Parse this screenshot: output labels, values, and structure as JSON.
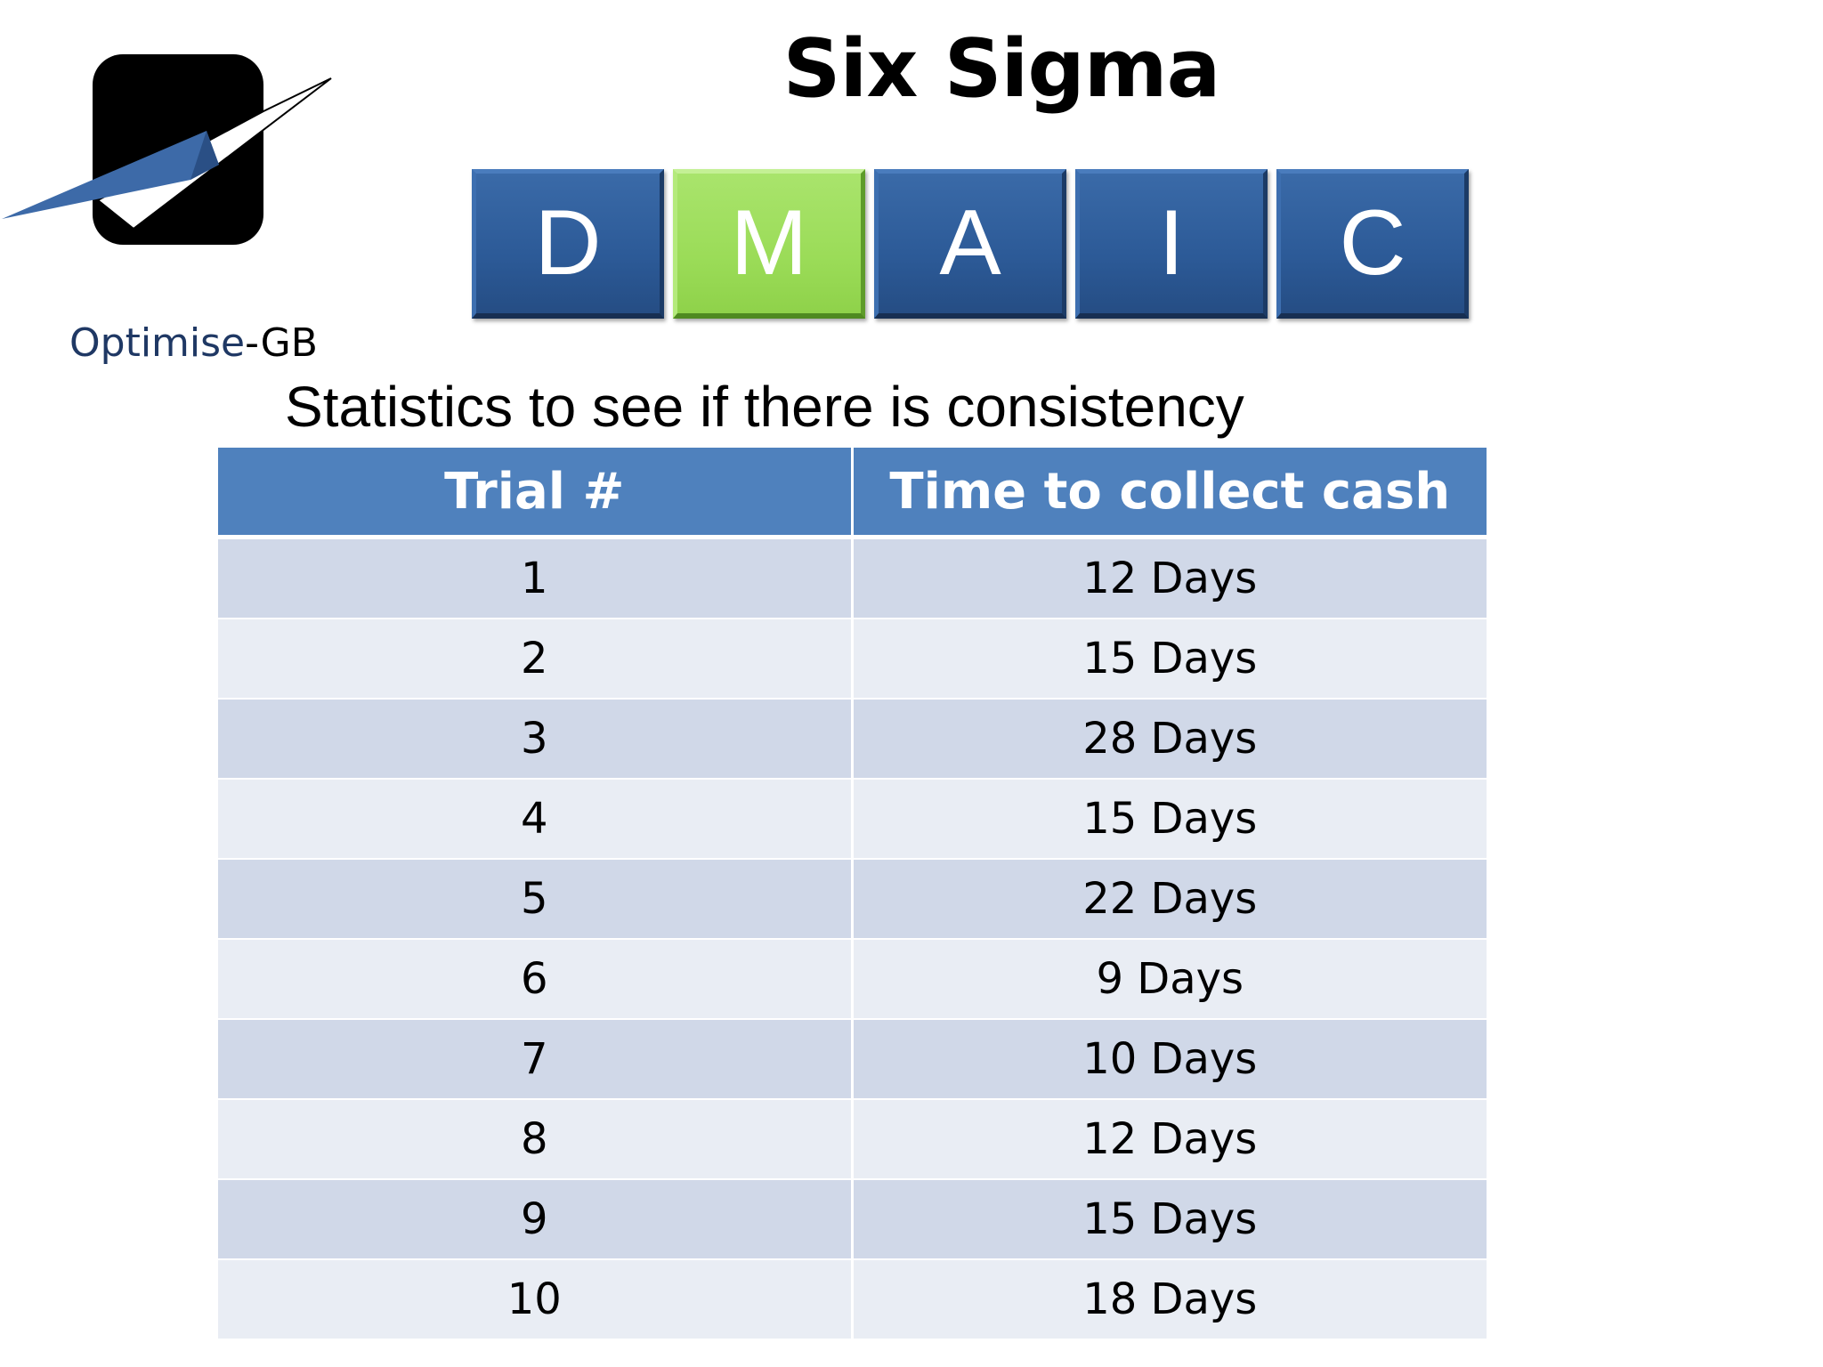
{
  "logo": {
    "name_primary": "Optimise",
    "name_suffix": "-GB",
    "colors": {
      "box": "#000000",
      "blade": "#3d6aa8",
      "check": "#ffffff"
    }
  },
  "title": "Six Sigma",
  "dmaic": {
    "phases": [
      {
        "letter": "D",
        "active": false
      },
      {
        "letter": "M",
        "active": true
      },
      {
        "letter": "A",
        "active": false
      },
      {
        "letter": "I",
        "active": false
      },
      {
        "letter": "C",
        "active": false
      }
    ],
    "colors": {
      "phase": "#2c5a97",
      "active": "#9bdc58"
    }
  },
  "subtitle": "Statistics to see if there is consistency",
  "table": {
    "headers": [
      "Trial #",
      "Time to collect cash"
    ],
    "rows": [
      [
        "1",
        "12 Days"
      ],
      [
        "2",
        "15 Days"
      ],
      [
        "3",
        "28 Days"
      ],
      [
        "4",
        "15 Days"
      ],
      [
        "5",
        "22 Days"
      ],
      [
        "6",
        "9 Days"
      ],
      [
        "7",
        "10 Days"
      ],
      [
        "8",
        "12 Days"
      ],
      [
        "9",
        "15 Days"
      ],
      [
        "10",
        "18 Days"
      ]
    ],
    "colors": {
      "header": "#4f81bd",
      "row_odd": "#d0d8e8",
      "row_even": "#e9edf4"
    }
  }
}
